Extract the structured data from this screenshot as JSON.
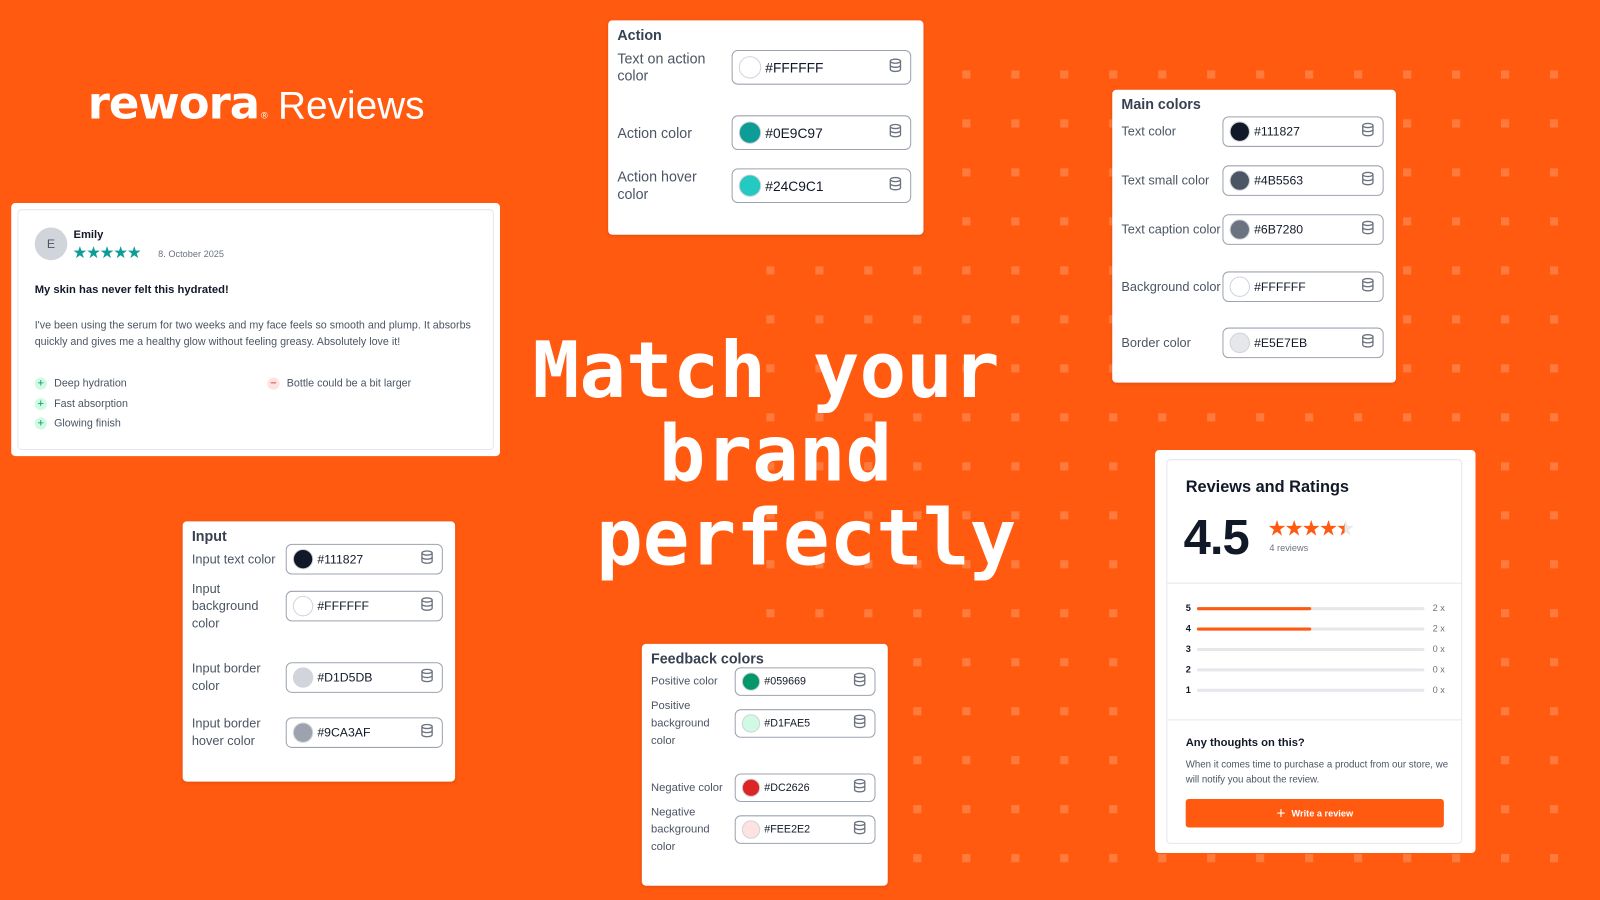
{
  "logo": {
    "brand": "rewora",
    "product": "Reviews"
  },
  "headline": [
    "Match your",
    "brand",
    "perfectly"
  ],
  "colors": {
    "background": "#FF5A10",
    "dots": "#FF7A3D",
    "accent": "#FF5A10"
  },
  "panels": [
    {
      "id": "action",
      "title": "Action",
      "rows": [
        {
          "label": "Text on action color",
          "value": "#FFFFFF"
        },
        {
          "label": "Action color",
          "value": "#0E9C97"
        },
        {
          "label": "Action hover color",
          "value": "#24C9C1"
        }
      ]
    },
    {
      "id": "main-colors",
      "title": "Main colors",
      "rows": [
        {
          "label": "Text color",
          "value": "#111827"
        },
        {
          "label": "Text small color",
          "value": "#4B5563"
        },
        {
          "label": "Text caption color",
          "value": "#6B7280"
        },
        {
          "label": "Background color",
          "value": "#FFFFFF"
        },
        {
          "label": "Border color",
          "value": "#E5E7EB"
        }
      ]
    },
    {
      "id": "input",
      "title": "Input",
      "rows": [
        {
          "label": "Input text color",
          "value": "#111827"
        },
        {
          "label": "Input background color",
          "value": "#FFFFFF"
        },
        {
          "label": "Input border color",
          "value": "#D1D5DB"
        },
        {
          "label": "Input border hover color",
          "value": "#9CA3AF"
        }
      ]
    },
    {
      "id": "feedback",
      "title": "Feedback colors",
      "rows": [
        {
          "label": "Positive color",
          "value": "#059669"
        },
        {
          "label": "Positive background color",
          "value": "#D1FAE5"
        },
        {
          "label": "Negative color",
          "value": "#DC2626"
        },
        {
          "label": "Negative background color",
          "value": "#FEE2E2"
        }
      ]
    }
  ],
  "review": {
    "avatar_initial": "E",
    "name": "Emily",
    "rating": 5,
    "stars": "★★★★★",
    "date": "8. October 2025",
    "title": "My skin has never felt this hydrated!",
    "body": "I've been using the serum for two weeks and my face feels so smooth and plump. It absorbs quickly and gives me a healthy glow without feeling greasy. Absolutely love it!",
    "pros": [
      "Deep hydration",
      "Fast absorption",
      "Glowing finish"
    ],
    "cons": [
      "Bottle could be a bit larger"
    ]
  },
  "ratings": {
    "title": "Reviews and Ratings",
    "average": "4.5",
    "stars": "★★★★★",
    "count_label": "4 reviews",
    "distribution": [
      {
        "stars": "5",
        "count": 2,
        "label": "2 x"
      },
      {
        "stars": "4",
        "count": 2,
        "label": "2 x"
      },
      {
        "stars": "3",
        "count": 0,
        "label": "0 x"
      },
      {
        "stars": "2",
        "count": 0,
        "label": "0 x"
      },
      {
        "stars": "1",
        "count": 0,
        "label": "0 x"
      }
    ],
    "total": 4,
    "prompt_title": "Any thoughts on this?",
    "prompt_text": "When it comes time to purchase a product from our store, we will notify you about the review.",
    "button_label": "Write a review"
  }
}
